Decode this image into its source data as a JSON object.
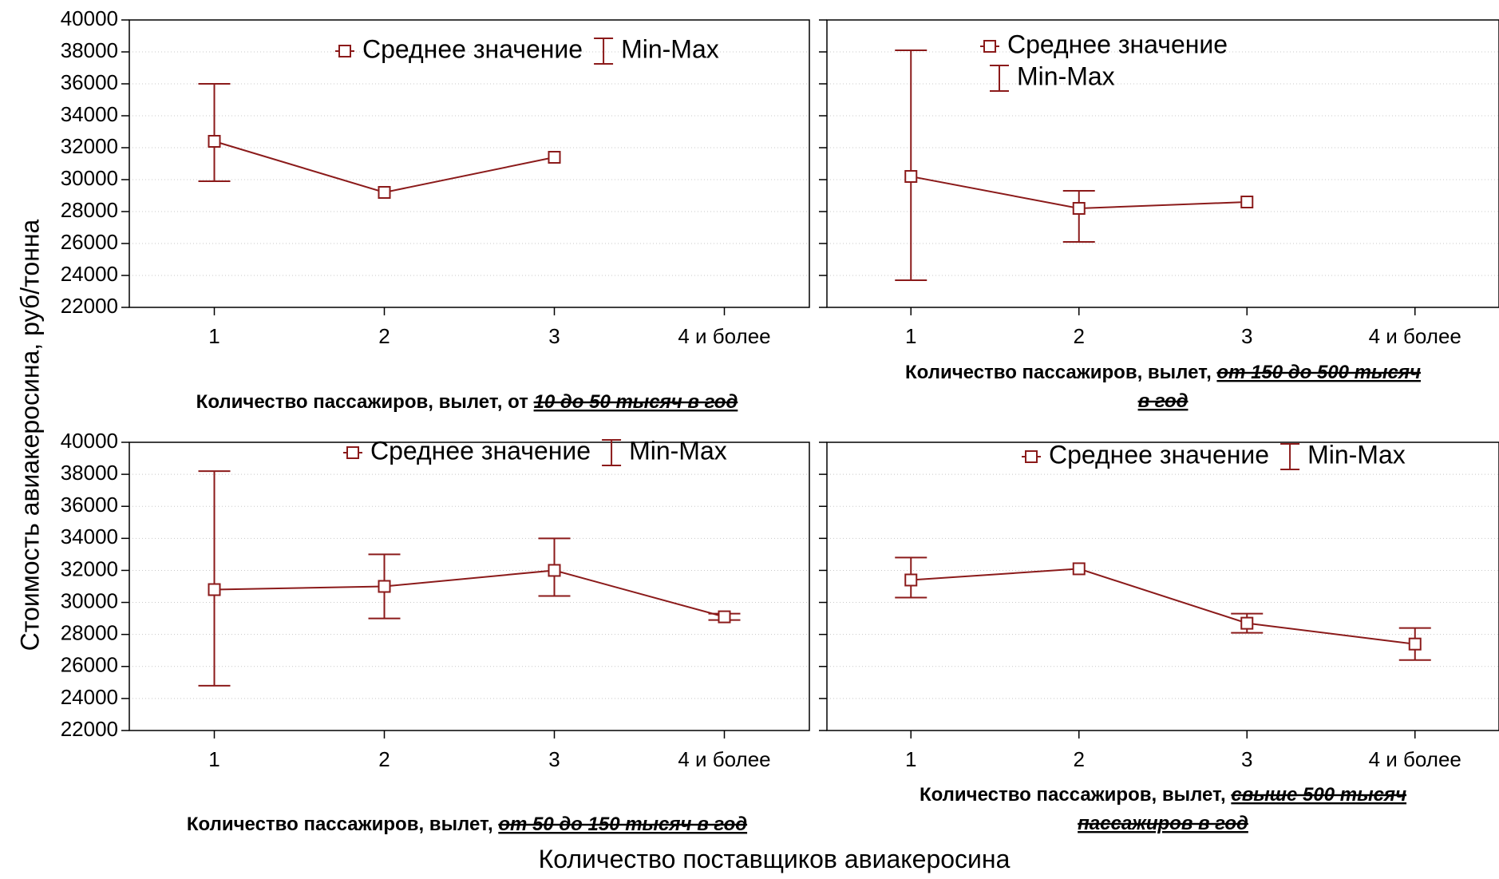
{
  "chart_data": {
    "type": "line",
    "y_label": "Стоимость авиакеросина, руб/тонна",
    "x_label": "Количество поставщиков  авиакеросина",
    "categories": [
      "1",
      "2",
      "3",
      "4  и  более"
    ],
    "y_ticks": [
      40000,
      38000,
      36000,
      34000,
      32000,
      30000,
      28000,
      26000,
      24000,
      22000
    ],
    "ylim": [
      22000,
      40000
    ],
    "colors": {
      "series": "#8b1a1a",
      "frame": "#000000",
      "grid": "#c8c8c8"
    },
    "legend": {
      "mean": "Среднее  значение",
      "minmax": "Min-Max"
    },
    "panels": [
      {
        "xlabel_prefix": "Количество пассажиров, вылет, от ",
        "xlabel_emph": "10 до 50 тысяч в год ",
        "xlabel_line2": "",
        "mean": [
          32400,
          29200,
          31400,
          null
        ],
        "min": [
          29900,
          null,
          null,
          null
        ],
        "max": [
          36000,
          null,
          null,
          null
        ],
        "legend_placement": "top-right-inline"
      },
      {
        "xlabel_prefix": "Количество пассажиров, вылет, ",
        "xlabel_emph": "от 150 до 500 тысяч",
        "xlabel_line2": "в год ",
        "mean": [
          30200,
          28200,
          28600,
          null
        ],
        "min": [
          23700,
          26100,
          null,
          null
        ],
        "max": [
          38100,
          29300,
          null,
          null
        ],
        "legend_placement": "top-stacked"
      },
      {
        "xlabel_prefix": "Количество пассажиров, вылет, ",
        "xlabel_emph": "от 50 до 150 тысяч в год",
        "xlabel_line2": "",
        "mean": [
          30800,
          31000,
          32000,
          29100
        ],
        "min": [
          24800,
          29000,
          30400,
          28900
        ],
        "max": [
          38200,
          33000,
          34000,
          29300
        ],
        "legend_placement": "top-right-inline"
      },
      {
        "xlabel_prefix": "Количество пассажиров, вылет, ",
        "xlabel_emph": "свыше 500 тысяч",
        "xlabel_line2": "пассажиров в год",
        "mean": [
          31400,
          32100,
          28700,
          27400
        ],
        "min": [
          30300,
          null,
          28100,
          26400
        ],
        "max": [
          32800,
          null,
          29300,
          28400
        ],
        "legend_placement": "top-right-inline"
      }
    ]
  }
}
